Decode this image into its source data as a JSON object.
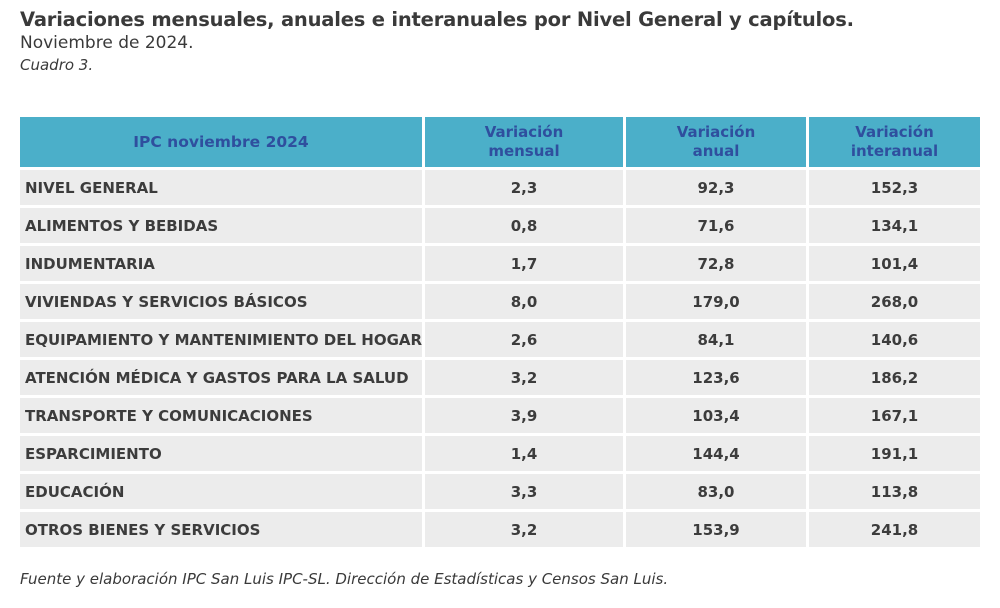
{
  "title": "Variaciones mensuales, anuales e interanuales por Nivel General y capítulos.",
  "subtitle": "Noviembre de 2024.",
  "caption": "Cuadro 3.",
  "table": {
    "headers": [
      "IPC noviembre 2024",
      "Variación mensual",
      "Variación anual",
      "Variación interanual"
    ],
    "rows": [
      {
        "label": "NIVEL GENERAL",
        "mensual": "2,3",
        "anual": "92,3",
        "interanual": "152,3"
      },
      {
        "label": "ALIMENTOS Y BEBIDAS",
        "mensual": "0,8",
        "anual": "71,6",
        "interanual": "134,1"
      },
      {
        "label": "INDUMENTARIA",
        "mensual": "1,7",
        "anual": "72,8",
        "interanual": "101,4"
      },
      {
        "label": "VIVIENDAS Y SERVICIOS BÁSICOS",
        "mensual": "8,0",
        "anual": "179,0",
        "interanual": "268,0"
      },
      {
        "label": "EQUIPAMIENTO Y MANTENIMIENTO DEL HOGAR",
        "mensual": "2,6",
        "anual": "84,1",
        "interanual": "140,6"
      },
      {
        "label": "ATENCIÓN MÉDICA Y GASTOS PARA LA SALUD",
        "mensual": "3,2",
        "anual": "123,6",
        "interanual": "186,2"
      },
      {
        "label": "TRANSPORTE Y COMUNICACIONES",
        "mensual": "3,9",
        "anual": "103,4",
        "interanual": "167,1"
      },
      {
        "label": "ESPARCIMIENTO",
        "mensual": "1,4",
        "anual": "144,4",
        "interanual": "191,1"
      },
      {
        "label": "EDUCACIÓN",
        "mensual": "3,3",
        "anual": "83,0",
        "interanual": "113,8"
      },
      {
        "label": "OTROS BIENES Y SERVICIOS",
        "mensual": "3,2",
        "anual": "153,9",
        "interanual": "241,8"
      }
    ]
  },
  "colors": {
    "header_bg": "#4bafc9",
    "header_text": "#2f4f9e",
    "row_bg": "#ececec",
    "text": "#3a3a3a"
  },
  "source": "Fuente y elaboración IPC San Luis IPC-SL. Dirección de Estadísticas y Censos San Luis."
}
